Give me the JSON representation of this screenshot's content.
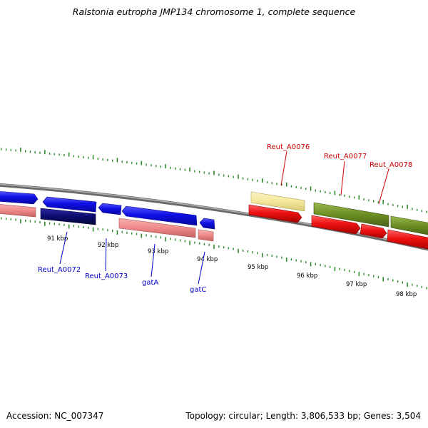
{
  "title": "Ralstonia eutropha JMP134 chromosome 1, complete sequence",
  "ruler": {
    "tick_labels": [
      "91 kbp",
      "92 kbp",
      "93 kbp",
      "94 kbp",
      "95 kbp",
      "96 kbp",
      "97 kbp",
      "98 kbp"
    ]
  },
  "colors": {
    "backbone": "#8c8c8c",
    "tick": "#2e8b2e",
    "blue": "#1010e6",
    "navy": "#0b0b6e",
    "pink": "#f08a8a",
    "red": "#ee1111",
    "pale_yellow": "#f3e79a",
    "olive": "#6b8e23",
    "label_blue": "#0000cc",
    "label_red": "#cc0000"
  },
  "genes": [
    {
      "id": "Reut_A0072",
      "color": "navy"
    },
    {
      "id": "Reut_A0073",
      "color": "blue"
    },
    {
      "id": "gatA",
      "color": "blue"
    },
    {
      "id": "gatC",
      "color": "blue"
    },
    {
      "id": "Reut_A0076",
      "color": "pale_yellow"
    },
    {
      "id": "Reut_A0077",
      "color": "olive"
    },
    {
      "id": "Reut_A0078",
      "color": "olive"
    }
  ],
  "footer": {
    "accession": "Accession: NC_007347",
    "summary": "Topology: circular; Length: 3,806,533 bp; Genes: 3,504"
  }
}
